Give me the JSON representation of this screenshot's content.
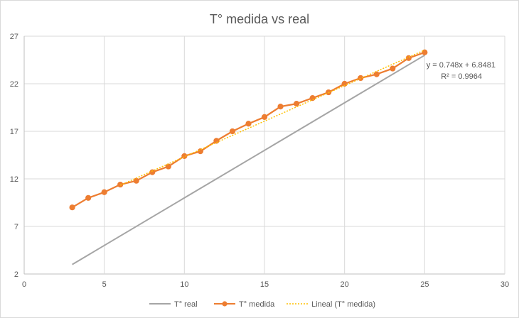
{
  "chart_data": {
    "type": "scatter",
    "title": "T° medida vs real",
    "xlabel": "",
    "ylabel": "",
    "xlim": [
      0,
      30
    ],
    "ylim": [
      2,
      27
    ],
    "x_ticks": [
      0,
      5,
      10,
      15,
      20,
      25,
      30
    ],
    "y_ticks": [
      2,
      7,
      12,
      17,
      22,
      27
    ],
    "grid": true,
    "legend_position": "bottom",
    "series": [
      {
        "name": "T° real",
        "style": "line",
        "color": "#a5a5a5",
        "x": [
          3,
          25
        ],
        "y": [
          3,
          25
        ]
      },
      {
        "name": "T° medida",
        "style": "line-markers",
        "color": "#ed7d31",
        "x": [
          3,
          4,
          5,
          6,
          7,
          8,
          9,
          10,
          11,
          12,
          13,
          14,
          15,
          16,
          17,
          18,
          19,
          20,
          21,
          22,
          23,
          24,
          25
        ],
        "y": [
          9.0,
          10.0,
          10.6,
          11.4,
          11.8,
          12.7,
          13.3,
          14.4,
          14.9,
          16.0,
          17.0,
          17.8,
          18.5,
          19.6,
          19.9,
          20.5,
          21.1,
          22.0,
          22.6,
          23.0,
          23.6,
          24.7,
          25.3
        ]
      },
      {
        "name": "Lineal (T° medida)",
        "style": "dotted-trendline",
        "color": "#ffc000",
        "x": [
          6,
          25
        ],
        "y": [
          11.3361,
          25.5481
        ]
      }
    ],
    "annotations": {
      "equation": "y = 0.748x + 6.8481",
      "r_squared": "R² = 0.9964"
    }
  }
}
